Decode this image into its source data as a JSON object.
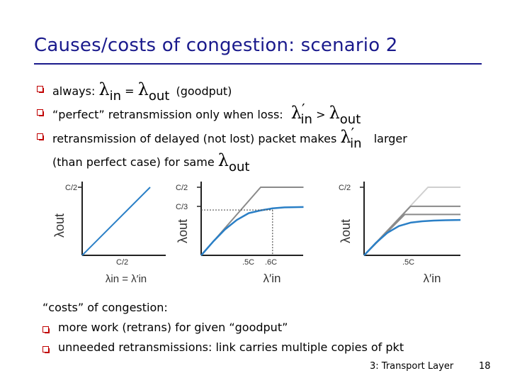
{
  "slide": {
    "title": "Causes/costs of congestion: scenario 2",
    "page_number": "18",
    "footer_label": "3: Transport Layer"
  },
  "bullets": {
    "b1_prefix": "always:",
    "b1_lambda_in": "λ",
    "b1_sub_in": "in",
    "b1_eq": "=",
    "b1_lambda_out": "λ",
    "b1_sub_out": "out",
    "b1_suffix": "(goodput)",
    "b2_prefix": "“perfect” retransmission only when loss:",
    "b2_lambda_in": "λ",
    "b2_prime": "′",
    "b2_sub_in": "in",
    "b2_gt": ">",
    "b2_lambda_out": "λ",
    "b2_sub_out": "out",
    "b3_prefix": "retransmission of delayed (not lost) packet makes",
    "b3_lambda": "λ",
    "b3_prime": "′",
    "b3_sub_in": "in",
    "b3_suffix": "larger",
    "b4_prefix": "(than perfect case) for same",
    "b4_lambda": "λ",
    "b4_sub_out": "out"
  },
  "costs": {
    "heading": "“costs” of congestion:",
    "item1": "more work (retrans) for given “goodput”",
    "item2": "unneeded retransmissions: link carries multiple copies of pkt"
  },
  "colors": {
    "title": "#1a1a8c",
    "bullet": "#c00000",
    "curve_blue": "#2a7fc6",
    "capacity_gray": "#8a8a8a",
    "light_gray": "#cfcfcf"
  },
  "chart_data": [
    {
      "type": "line",
      "yticks": [
        "C/2"
      ],
      "xticks": [
        "C/2"
      ],
      "ylabel": "λout",
      "xlabel": "λin = λ′in",
      "series": [
        {
          "x": [
            0,
            0.5
          ],
          "y": [
            0,
            0.5
          ]
        }
      ],
      "xlim": [
        0,
        0.5
      ],
      "ylim": [
        0,
        0.5
      ]
    },
    {
      "type": "line",
      "yticks": [
        "C/2",
        "C/3"
      ],
      "xticks": [
        ".5C",
        ".6C"
      ],
      "ylabel": "λout",
      "xlabel": "λ′in",
      "series": [
        {
          "x": [
            0,
            0.5,
            0.86
          ],
          "y": [
            0,
            0.5,
            0.5
          ]
        },
        {
          "x": [
            0,
            0.1,
            0.2,
            0.3,
            0.4,
            0.5,
            0.6,
            0.7,
            0.86
          ],
          "y": [
            0,
            0.1,
            0.19,
            0.26,
            0.31,
            0.33,
            0.345,
            0.352,
            0.355
          ]
        }
      ],
      "guides": [
        {
          "x": 0.6,
          "y": 0.333
        }
      ]
    },
    {
      "type": "line",
      "yticks": [
        "C/2"
      ],
      "xticks": [
        ".5C"
      ],
      "ylabel": "λout",
      "xlabel": "λ′in",
      "series": [
        {
          "x": [
            0,
            0.55,
            0.83
          ],
          "y": [
            0,
            0.5,
            0.5
          ]
        },
        {
          "x": [
            0,
            0.4,
            0.83
          ],
          "y": [
            0,
            0.36,
            0.36
          ]
        },
        {
          "x": [
            0,
            0.35,
            0.83
          ],
          "y": [
            0,
            0.3,
            0.3
          ]
        },
        {
          "x": [
            0,
            0.1,
            0.2,
            0.3,
            0.4,
            0.5,
            0.6,
            0.7,
            0.83
          ],
          "y": [
            0,
            0.09,
            0.165,
            0.215,
            0.24,
            0.25,
            0.255,
            0.258,
            0.26
          ]
        }
      ]
    }
  ]
}
